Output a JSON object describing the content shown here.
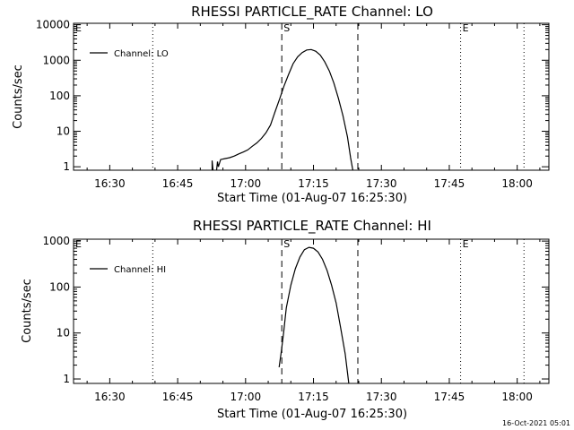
{
  "footer_timestamp": "16-Oct-2021 05:01",
  "chart_data": [
    {
      "type": "line",
      "title": "RHESSI PARTICLE_RATE Channel: LO",
      "xlabel": "Start Time (01-Aug-07 16:25:30)",
      "ylabel": "Counts/sec",
      "y_scale": "log",
      "xlim": [
        "16:22",
        "18:07"
      ],
      "ylim": [
        0.8,
        11000
      ],
      "x_ticks": [
        "16:30",
        "16:45",
        "17:00",
        "17:15",
        "17:30",
        "17:45",
        "18:00"
      ],
      "y_ticks": [
        {
          "value": 1,
          "label": "1"
        },
        {
          "value": 10,
          "label": "10"
        },
        {
          "value": 100,
          "label": "100"
        },
        {
          "value": 1000,
          "label": "1000"
        },
        {
          "value": 10000,
          "label": "10000"
        }
      ],
      "legend": {
        "position": "top-left",
        "label": "Channel: LO"
      },
      "markers": [
        {
          "time": "16:22",
          "label": "E",
          "style": "dotted"
        },
        {
          "time": "16:39.5",
          "label": "",
          "style": "dotted"
        },
        {
          "time": "17:08",
          "label": "S",
          "style": "dashed"
        },
        {
          "time": "17:24.8",
          "label": "",
          "style": "dashed"
        },
        {
          "time": "17:47.5",
          "label": "E",
          "style": "dotted"
        },
        {
          "time": "18:01.5",
          "label": "",
          "style": "dotted"
        }
      ],
      "series": [
        {
          "name": "Channel: LO",
          "segments": [
            [
              [
                "16:52.6",
                0.8
              ],
              [
                "16:52.6",
                1.5
              ],
              [
                "16:52.8",
                0.8
              ]
            ],
            [
              [
                "16:53.6",
                0.8
              ],
              [
                "16:53.8",
                1.4
              ],
              [
                "16:54",
                1.0
              ],
              [
                "16:54.2",
                1.2
              ],
              [
                "16:54.5",
                1.6
              ],
              [
                "16:55.5",
                1.7
              ],
              [
                "16:56.5",
                1.8
              ],
              [
                "16:57.5",
                2.0
              ],
              [
                "16:58.5",
                2.3
              ],
              [
                "16:59.5",
                2.6
              ],
              [
                "17:00.5",
                3.0
              ],
              [
                "17:01.5",
                3.8
              ],
              [
                "17:02.5",
                4.7
              ],
              [
                "17:03.5",
                6.3
              ],
              [
                "17:04.5",
                9.0
              ],
              [
                "17:05.5",
                15
              ],
              [
                "17:06.5",
                35
              ],
              [
                "17:07.5",
                80
              ],
              [
                "17:08.5",
                190
              ],
              [
                "17:09.5",
                400
              ],
              [
                "17:10.5",
                800
              ],
              [
                "17:11.5",
                1250
              ],
              [
                "17:12.5",
                1650
              ],
              [
                "17:13.5",
                1950
              ],
              [
                "17:14.5",
                2000
              ],
              [
                "17:15.5",
                1800
              ],
              [
                "17:16.5",
                1400
              ],
              [
                "17:17.5",
                900
              ],
              [
                "17:18.5",
                500
              ],
              [
                "17:19.5",
                230
              ],
              [
                "17:20.5",
                85
              ],
              [
                "17:21.5",
                28
              ],
              [
                "17:22.5",
                7
              ],
              [
                "17:23.2",
                1.8
              ],
              [
                "17:23.7",
                0.8
              ]
            ]
          ]
        }
      ]
    },
    {
      "type": "line",
      "title": "RHESSI PARTICLE_RATE Channel: HI",
      "xlabel": "Start Time (01-Aug-07 16:25:30)",
      "ylabel": "Counts/sec",
      "y_scale": "log",
      "xlim": [
        "16:22",
        "18:07"
      ],
      "ylim": [
        0.8,
        1100
      ],
      "x_ticks": [
        "16:30",
        "16:45",
        "17:00",
        "17:15",
        "17:30",
        "17:45",
        "18:00"
      ],
      "y_ticks": [
        {
          "value": 1,
          "label": "1"
        },
        {
          "value": 10,
          "label": "10"
        },
        {
          "value": 100,
          "label": "100"
        },
        {
          "value": 1000,
          "label": "1000"
        }
      ],
      "legend": {
        "position": "top-left",
        "label": "Channel: HI"
      },
      "markers": [
        {
          "time": "16:22",
          "label": "E",
          "style": "dotted"
        },
        {
          "time": "16:39.5",
          "label": "",
          "style": "dotted"
        },
        {
          "time": "17:08",
          "label": "S",
          "style": "dashed"
        },
        {
          "time": "17:24.8",
          "label": "",
          "style": "dashed"
        },
        {
          "time": "17:47.5",
          "label": "E",
          "style": "dotted"
        },
        {
          "time": "18:01.5",
          "label": "",
          "style": "dotted"
        }
      ],
      "series": [
        {
          "name": "Channel: HI",
          "segments": [
            [
              [
                "17:07.4",
                1.8
              ],
              [
                "17:07.9",
                4.0
              ],
              [
                "17:08.4",
                10
              ],
              [
                "17:09",
                35
              ],
              [
                "17:10",
                110
              ],
              [
                "17:11",
                250
              ],
              [
                "17:12",
                450
              ],
              [
                "17:13",
                650
              ],
              [
                "17:14",
                730
              ],
              [
                "17:15",
                700
              ],
              [
                "17:16",
                580
              ],
              [
                "17:17",
                400
              ],
              [
                "17:18",
                230
              ],
              [
                "17:19",
                110
              ],
              [
                "17:20",
                45
              ],
              [
                "17:21",
                13
              ],
              [
                "17:22",
                3.5
              ],
              [
                "17:22.8",
                0.8
              ]
            ]
          ]
        }
      ]
    }
  ]
}
